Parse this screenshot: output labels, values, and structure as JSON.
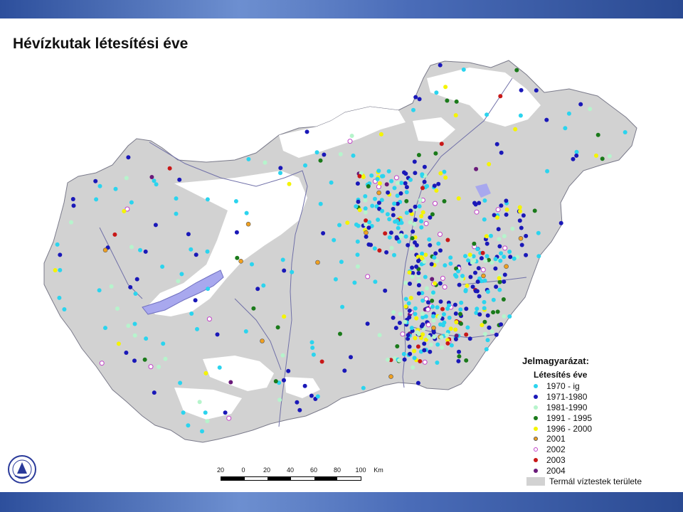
{
  "title": "Hévízkutak létesítési éve",
  "legend": {
    "title": "Jelmagyarázat:",
    "subtitle": "Létesítés éve",
    "items": [
      {
        "label": "1970 - ig",
        "color": "#2bd4ee",
        "style": "filled"
      },
      {
        "label": "1971-1980",
        "color": "#1a18b8",
        "style": "filled"
      },
      {
        "label": "1981-1990",
        "color": "#b6f4cc",
        "style": "filled"
      },
      {
        "label": "1991 - 1995",
        "color": "#1a7a1a",
        "style": "filled"
      },
      {
        "label": "1996 - 2000",
        "color": "#f4f400",
        "style": "filled"
      },
      {
        "label": "2001",
        "color": "#f0a020",
        "style": "filled-outline"
      },
      {
        "label": "2002",
        "color": "#c040c8",
        "style": "ring"
      },
      {
        "label": "2003",
        "color": "#c81818",
        "style": "filled"
      },
      {
        "label": "2004",
        "color": "#6a1a7a",
        "style": "filled"
      }
    ],
    "area_label": "Termál víztestek területe",
    "area_color": "#d2d2d2"
  },
  "scale": {
    "labels": [
      "20",
      "0",
      "20",
      "40",
      "60",
      "80",
      "100"
    ],
    "unit": "Km"
  },
  "colors": {
    "land": "#d2d2d2",
    "country_white": "#ffffff",
    "lake": "#a8a8ee",
    "river": "#7070a8",
    "border": "#7a7a8a",
    "band": "#3a5ca8"
  },
  "icons": {
    "logo": "institution-logo-icon"
  }
}
